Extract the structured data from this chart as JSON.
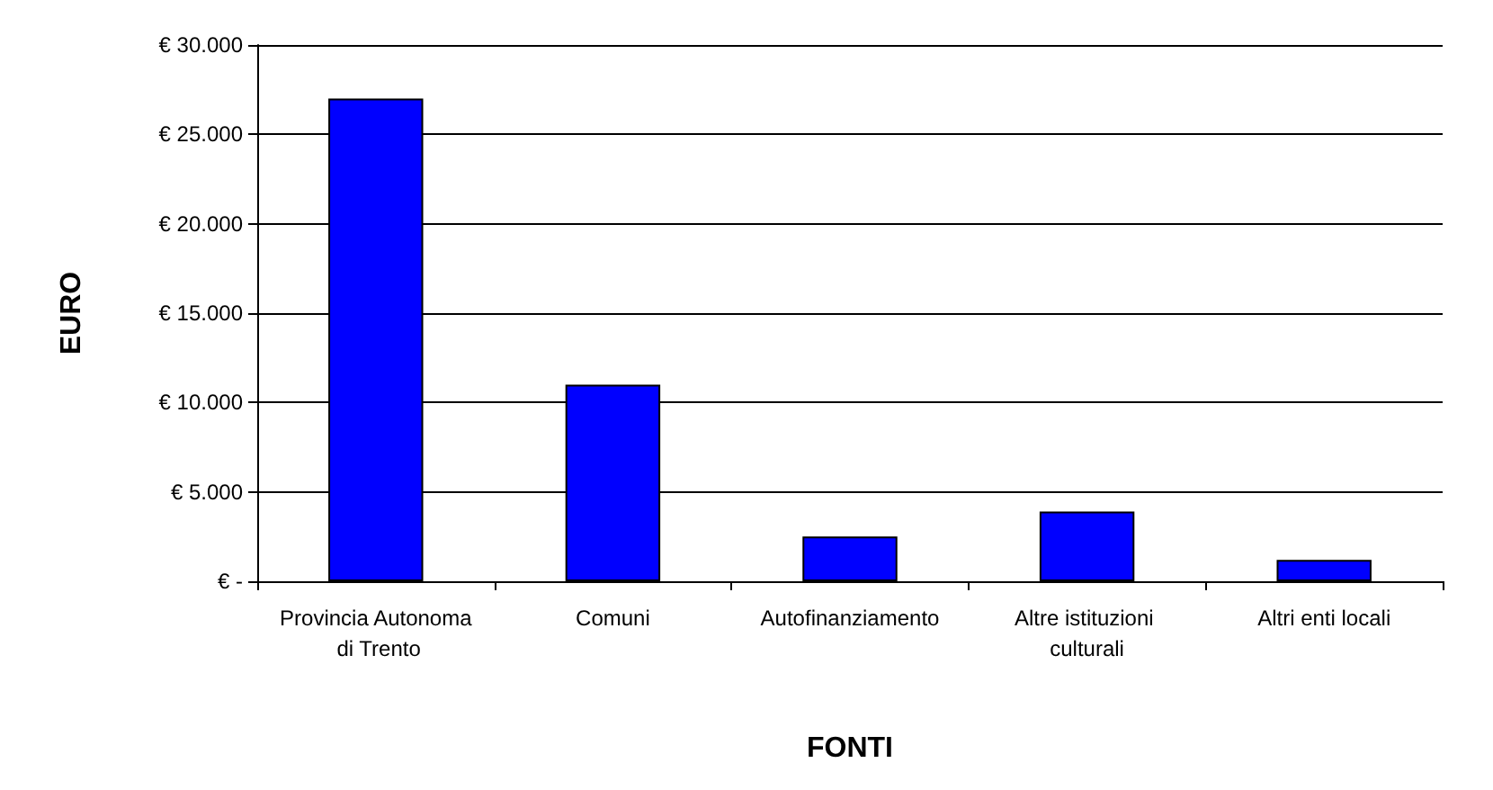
{
  "chart_data": {
    "type": "bar",
    "xlabel": "FONTI",
    "ylabel": "EURO",
    "categories": [
      "Provincia Autonoma di Trento",
      "Comuni",
      "Autofinanziamento",
      "Altre istituzioni culturali",
      "Altri enti locali"
    ],
    "values": [
      27000,
      11000,
      2500,
      3900,
      1200
    ],
    "color": "#0000ff",
    "ylim": [
      0,
      30000
    ],
    "yticks": [
      {
        "value": 0,
        "label": "€ -"
      },
      {
        "value": 5000,
        "label": "€ 5.000"
      },
      {
        "value": 10000,
        "label": "€ 10.000"
      },
      {
        "value": 15000,
        "label": "€ 15.000"
      },
      {
        "value": 20000,
        "label": "€ 20.000"
      },
      {
        "value": 25000,
        "label": "€ 25.000"
      },
      {
        "value": 30000,
        "label": "€ 30.000"
      }
    ],
    "grid": "y"
  }
}
